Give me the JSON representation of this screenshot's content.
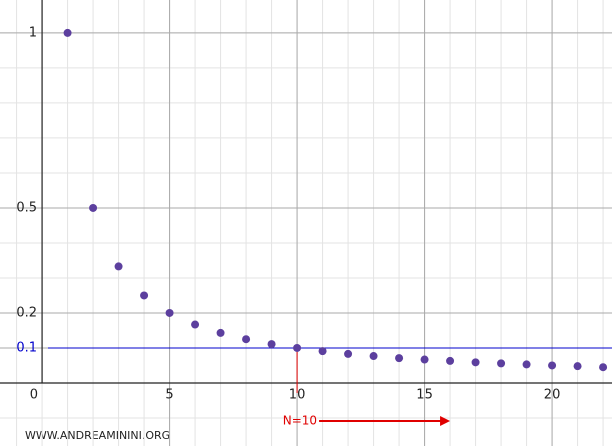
{
  "chart_data": {
    "type": "scatter",
    "x": [
      1,
      2,
      3,
      4,
      5,
      6,
      7,
      8,
      9,
      10,
      11,
      12,
      13,
      14,
      15,
      16,
      17,
      18,
      19,
      20,
      21,
      22
    ],
    "series": [
      {
        "color": "#5c3f9e",
        "values": [
          1,
          0.5,
          0.333,
          0.25,
          0.2,
          0.167,
          0.143,
          0.125,
          0.111,
          0.1,
          0.091,
          0.083,
          0.077,
          0.071,
          0.067,
          0.063,
          0.059,
          0.056,
          0.053,
          0.05,
          0.048,
          0.045
        ]
      }
    ],
    "xlim": [
      -1.65,
      22.35
    ],
    "ylim": [
      -0.18,
      1.094
    ],
    "xticks": [
      0,
      5,
      10,
      15,
      20
    ],
    "yticks": [
      0.1,
      0.2,
      0.5,
      1
    ],
    "grid": true,
    "reference_line": {
      "y": 0.1,
      "color": "#0000cc"
    },
    "annotation": {
      "text": "N=10",
      "x": 10,
      "arrow_to": 16,
      "color": "#e00000"
    },
    "watermark": "WWW.ANDREAMININI.ORG"
  }
}
